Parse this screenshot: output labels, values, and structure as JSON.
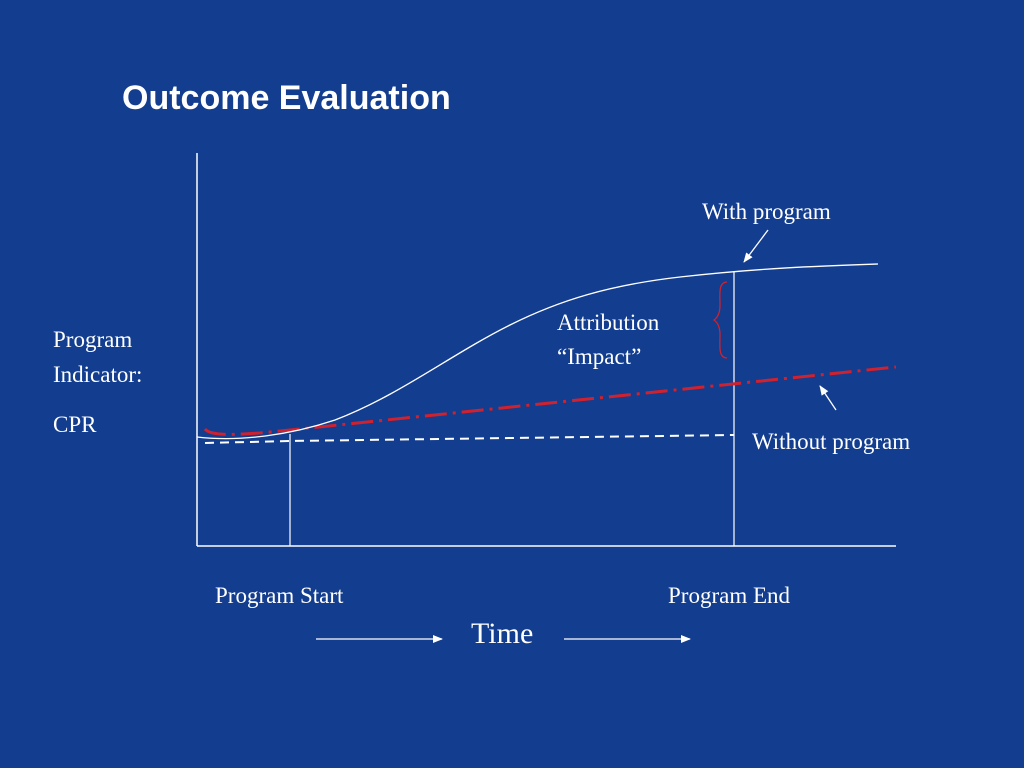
{
  "title": "Outcome Evaluation",
  "y_label": {
    "line1": "Program",
    "line2": "Indicator:",
    "line3": "CPR"
  },
  "curves": {
    "with_program": "With program",
    "without_program": "Without program"
  },
  "attribution": {
    "line1": "Attribution",
    "line2": "“Impact”"
  },
  "x_labels": {
    "start": "Program Start",
    "end": "Program End",
    "axis": "Time"
  },
  "colors": {
    "background": "#133d8e",
    "line": "#ffffff",
    "counterfactual": "#d0212f"
  }
}
